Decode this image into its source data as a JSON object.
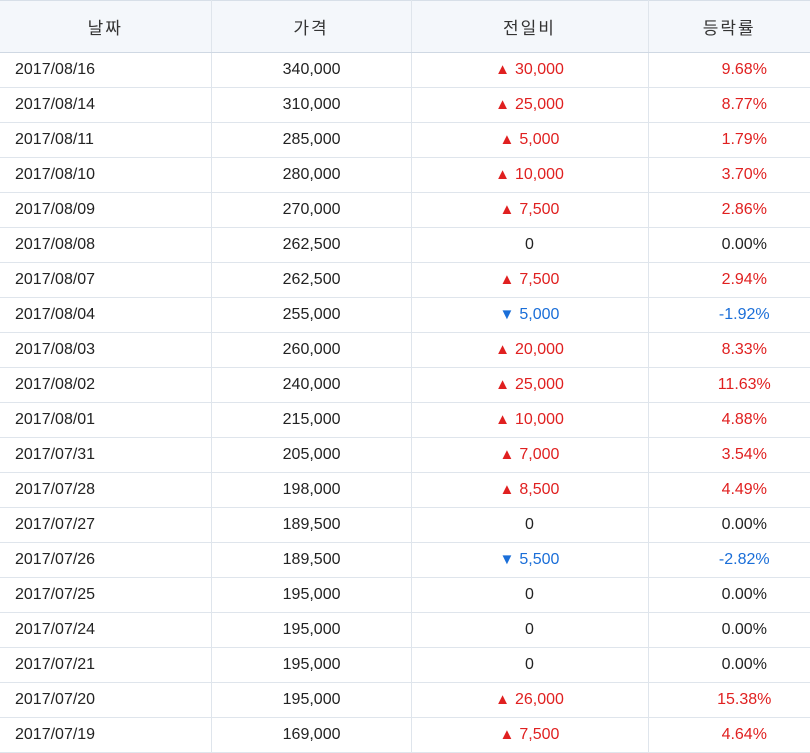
{
  "headers": [
    "날짜",
    "가격",
    "전일비",
    "등락률"
  ],
  "colors": {
    "up": "#e02020",
    "down": "#1a6ed8",
    "flat": "#222222"
  },
  "rows": [
    {
      "date": "2017/08/16",
      "price": "340,000",
      "change": "30,000",
      "dir": "up",
      "rate": "9.68%"
    },
    {
      "date": "2017/08/14",
      "price": "310,000",
      "change": "25,000",
      "dir": "up",
      "rate": "8.77%"
    },
    {
      "date": "2017/08/11",
      "price": "285,000",
      "change": "5,000",
      "dir": "up",
      "rate": "1.79%"
    },
    {
      "date": "2017/08/10",
      "price": "280,000",
      "change": "10,000",
      "dir": "up",
      "rate": "3.70%"
    },
    {
      "date": "2017/08/09",
      "price": "270,000",
      "change": "7,500",
      "dir": "up",
      "rate": "2.86%"
    },
    {
      "date": "2017/08/08",
      "price": "262,500",
      "change": "0",
      "dir": "flat",
      "rate": "0.00%"
    },
    {
      "date": "2017/08/07",
      "price": "262,500",
      "change": "7,500",
      "dir": "up",
      "rate": "2.94%"
    },
    {
      "date": "2017/08/04",
      "price": "255,000",
      "change": "5,000",
      "dir": "down",
      "rate": "-1.92%"
    },
    {
      "date": "2017/08/03",
      "price": "260,000",
      "change": "20,000",
      "dir": "up",
      "rate": "8.33%"
    },
    {
      "date": "2017/08/02",
      "price": "240,000",
      "change": "25,000",
      "dir": "up",
      "rate": "11.63%"
    },
    {
      "date": "2017/08/01",
      "price": "215,000",
      "change": "10,000",
      "dir": "up",
      "rate": "4.88%"
    },
    {
      "date": "2017/07/31",
      "price": "205,000",
      "change": "7,000",
      "dir": "up",
      "rate": "3.54%"
    },
    {
      "date": "2017/07/28",
      "price": "198,000",
      "change": "8,500",
      "dir": "up",
      "rate": "4.49%"
    },
    {
      "date": "2017/07/27",
      "price": "189,500",
      "change": "0",
      "dir": "flat",
      "rate": "0.00%"
    },
    {
      "date": "2017/07/26",
      "price": "189,500",
      "change": "5,500",
      "dir": "down",
      "rate": "-2.82%"
    },
    {
      "date": "2017/07/25",
      "price": "195,000",
      "change": "0",
      "dir": "flat",
      "rate": "0.00%"
    },
    {
      "date": "2017/07/24",
      "price": "195,000",
      "change": "0",
      "dir": "flat",
      "rate": "0.00%"
    },
    {
      "date": "2017/07/21",
      "price": "195,000",
      "change": "0",
      "dir": "flat",
      "rate": "0.00%"
    },
    {
      "date": "2017/07/20",
      "price": "195,000",
      "change": "26,000",
      "dir": "up",
      "rate": "15.38%"
    },
    {
      "date": "2017/07/19",
      "price": "169,000",
      "change": "7,500",
      "dir": "up",
      "rate": "4.64%"
    }
  ]
}
